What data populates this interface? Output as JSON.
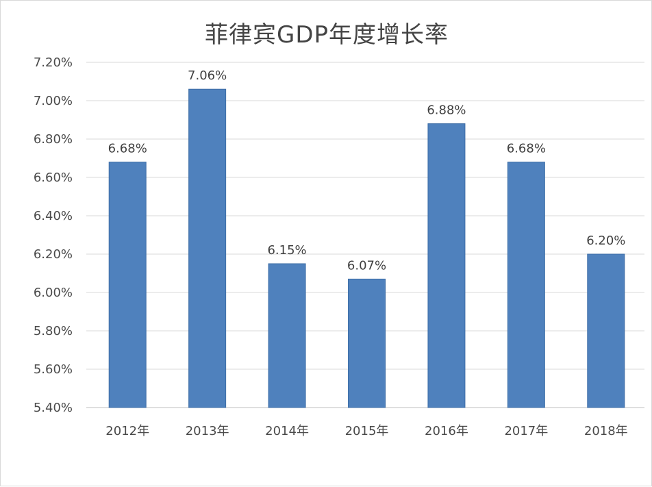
{
  "chart_data": {
    "type": "bar",
    "title": "菲律宾GDP年度增长率",
    "categories": [
      "2012年",
      "2013年",
      "2014年",
      "2015年",
      "2016年",
      "2017年",
      "2018年"
    ],
    "values": [
      6.68,
      7.06,
      6.15,
      6.07,
      6.88,
      6.68,
      6.2
    ],
    "data_labels": [
      "6.68%",
      "7.06%",
      "6.15%",
      "6.07%",
      "6.88%",
      "6.68%",
      "6.20%"
    ],
    "y_ticks": [
      5.4,
      5.6,
      5.8,
      6.0,
      6.2,
      6.4,
      6.6,
      6.8,
      7.0,
      7.2
    ],
    "y_tick_labels": [
      "5.40%",
      "5.60%",
      "5.80%",
      "6.00%",
      "6.20%",
      "6.40%",
      "6.60%",
      "6.80%",
      "7.00%",
      "7.20%"
    ],
    "ylim": [
      5.4,
      7.2
    ],
    "grid": true,
    "legend": "none",
    "colors": {
      "bar": "#4f81bd",
      "bar_edge": "#3d6da6",
      "grid": "#d9d9d9"
    }
  }
}
